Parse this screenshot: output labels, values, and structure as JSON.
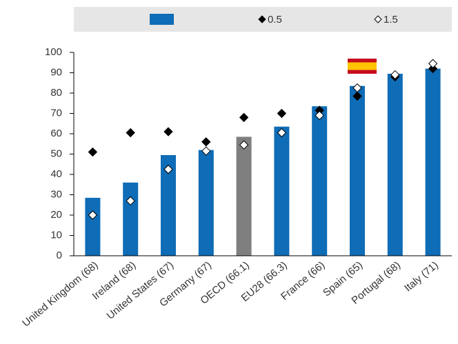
{
  "chart_data": {
    "type": "bar",
    "categories": [
      "United Kingdom (68)",
      "Ireland (68)",
      "United States (67)",
      "Germany (67)",
      "OECD (66.1)",
      "EU28 (66.3)",
      "France (66)",
      "Spain (65)",
      "Portugal (68)",
      "Italy (71)"
    ],
    "series": [
      {
        "color": "#0f6cb6",
        "colors": [
          "#0f6cb6",
          "#0f6cb6",
          "#0f6cb6",
          "#0f6cb6",
          "#7f7f7f",
          "#0f6cb6",
          "#0f6cb6",
          "#0f6cb6",
          "#0f6cb6",
          "#0f6cb6"
        ],
        "values": [
          28.5,
          36,
          49.5,
          52,
          58.5,
          63.5,
          73.5,
          83.5,
          89.5,
          92
        ]
      },
      {
        "name": "0.5",
        "color": "#000000",
        "marker": "diamond",
        "values": [
          51,
          60.5,
          61,
          56,
          68,
          70,
          71.5,
          78.5,
          88,
          92
        ]
      },
      {
        "name": "1.5",
        "color": "#ffffff",
        "marker": "diamond",
        "values": [
          20,
          27,
          42.5,
          51.5,
          54.5,
          60.5,
          69,
          82.5,
          89,
          94.5
        ]
      }
    ],
    "ylim": [
      0,
      100
    ],
    "yticks": [
      0,
      10,
      20,
      30,
      40,
      50,
      60,
      70,
      80,
      90,
      100
    ],
    "grid": false
  }
}
